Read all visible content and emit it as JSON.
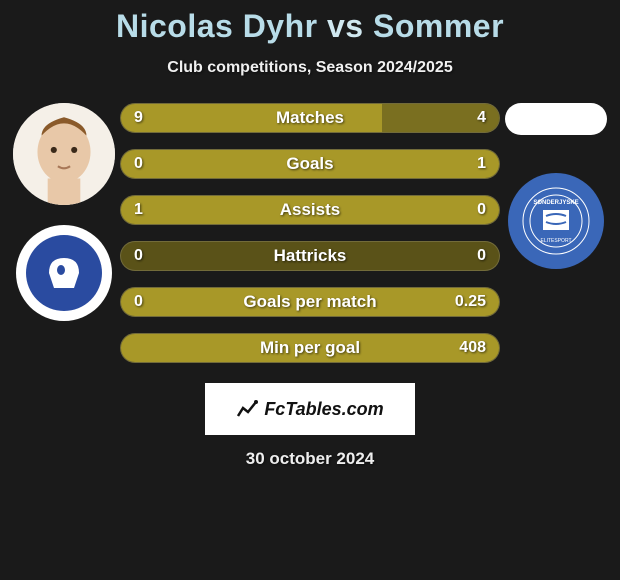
{
  "title": {
    "player1": "Nicolas Dyhr",
    "vs": "vs",
    "player2": "Sommer"
  },
  "subtitle": "Club competitions, Season 2024/2025",
  "colors": {
    "bar_left": "#a89828",
    "bar_right": "#7a6f20",
    "bar_neutral": "#5a5218",
    "text": "#ffffff",
    "background": "#1a1a1a",
    "badge_left_outer": "#ffffff",
    "badge_left_inner": "#2a4ba0",
    "badge_right": "#3a67b8"
  },
  "stats": [
    {
      "label": "Matches",
      "left_val": "9",
      "right_val": "4",
      "left_pct": 69,
      "right_pct": 31
    },
    {
      "label": "Goals",
      "left_val": "0",
      "right_val": "1",
      "left_pct": 0,
      "right_pct": 100
    },
    {
      "label": "Assists",
      "left_val": "1",
      "right_val": "0",
      "left_pct": 100,
      "right_pct": 0
    },
    {
      "label": "Hattricks",
      "left_val": "0",
      "right_val": "0",
      "left_pct": 0,
      "right_pct": 0
    },
    {
      "label": "Goals per match",
      "left_val": "0",
      "right_val": "0.25",
      "left_pct": 0,
      "right_pct": 100
    },
    {
      "label": "Min per goal",
      "left_val": "",
      "right_val": "408",
      "left_pct": 0,
      "right_pct": 100
    }
  ],
  "bar_style": {
    "height": 30,
    "gap": 16,
    "border_radius": 15,
    "label_fontsize": 17,
    "value_fontsize": 16
  },
  "footer": {
    "logo_text": "FcTables.com",
    "date": "30 october 2024"
  }
}
